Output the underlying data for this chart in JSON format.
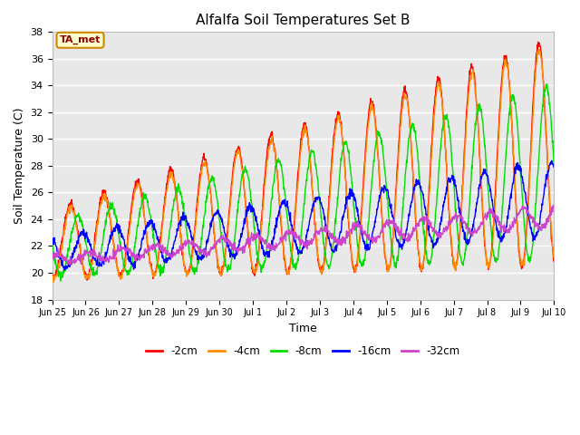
{
  "title": "Alfalfa Soil Temperatures Set B",
  "xlabel": "Time",
  "ylabel": "Soil Temperature (C)",
  "ylim": [
    18,
    38
  ],
  "figsize": [
    6.4,
    4.8
  ],
  "dpi": 100,
  "background_color": "#ffffff",
  "plot_bg_color": "#e8e8e8",
  "grid_color": "#ffffff",
  "colors": {
    "-2cm": "#ff0000",
    "-4cm": "#ff8c00",
    "-8cm": "#00dd00",
    "-16cm": "#0000ff",
    "-32cm": "#cc44cc"
  },
  "legend_label": "TA_met",
  "tick_labels": [
    "Jun 25",
    "Jun 26",
    "Jun 27",
    "Jun 28",
    "Jun 29",
    "Jun 30",
    "Jul 1",
    "Jul 2",
    "Jul 3",
    "Jul 4",
    "Jul 5",
    "Jul 6",
    "Jul 7",
    "Jul 8",
    "Jul 9",
    "Jul 10"
  ],
  "series_labels": [
    "-2cm",
    "-4cm",
    "-8cm",
    "-16cm",
    "-32cm"
  ],
  "n_days": 15
}
